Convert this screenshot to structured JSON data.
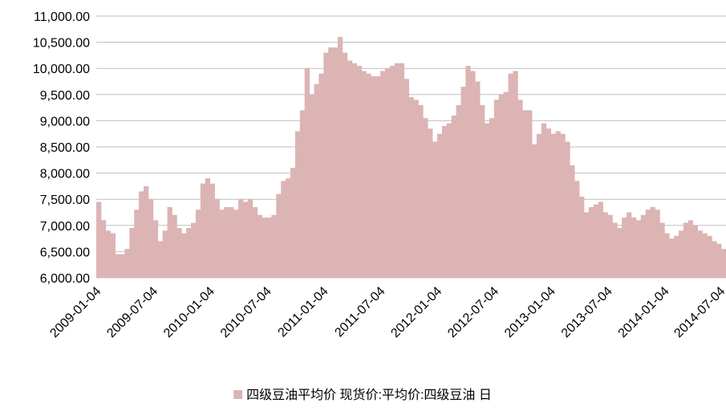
{
  "chart_data": {
    "type": "bar",
    "categories": [
      "2009-01-04",
      null,
      null,
      null,
      null,
      null,
      null,
      null,
      null,
      null,
      null,
      null,
      "2009-07-04",
      null,
      null,
      null,
      null,
      null,
      null,
      null,
      null,
      null,
      null,
      null,
      "2010-01-04",
      null,
      null,
      null,
      null,
      null,
      null,
      null,
      null,
      null,
      null,
      null,
      "2010-07-04",
      null,
      null,
      null,
      null,
      null,
      null,
      null,
      null,
      null,
      null,
      null,
      "2011-01-04",
      null,
      null,
      null,
      null,
      null,
      null,
      null,
      null,
      null,
      null,
      null,
      "2011-07-04",
      null,
      null,
      null,
      null,
      null,
      null,
      null,
      null,
      null,
      null,
      null,
      "2012-01-04",
      null,
      null,
      null,
      null,
      null,
      null,
      null,
      null,
      null,
      null,
      null,
      "2012-07-04",
      null,
      null,
      null,
      null,
      null,
      null,
      null,
      null,
      null,
      null,
      null,
      "2013-01-04",
      null,
      null,
      null,
      null,
      null,
      null,
      null,
      null,
      null,
      null,
      null,
      "2013-07-04",
      null,
      null,
      null,
      null,
      null,
      null,
      null,
      null,
      null,
      null,
      null,
      "2014-01-04",
      null,
      null,
      null,
      null,
      null,
      null,
      null,
      null,
      null,
      null,
      null,
      "2014-07-04"
    ],
    "series": [
      {
        "name": "四级豆油平均价 现货价:平均价:四级豆油 日",
        "color": "#dcb4b4",
        "values": [
          7450,
          7100,
          6900,
          6850,
          6450,
          6450,
          6550,
          6950,
          7300,
          7650,
          7750,
          7500,
          7100,
          6700,
          6900,
          7350,
          7200,
          6950,
          6850,
          6950,
          7050,
          7300,
          7800,
          7900,
          7800,
          7500,
          7300,
          7350,
          7350,
          7300,
          7500,
          7450,
          7500,
          7350,
          7200,
          7150,
          7150,
          7200,
          7600,
          7850,
          7900,
          8100,
          8800,
          9200,
          10000,
          9500,
          9700,
          9900,
          10300,
          10400,
          10400,
          10600,
          10300,
          10150,
          10100,
          10050,
          9950,
          9900,
          9850,
          9850,
          9950,
          10000,
          10050,
          10100,
          10100,
          9800,
          9450,
          9400,
          9300,
          9050,
          8850,
          8600,
          8750,
          8900,
          8950,
          9100,
          9300,
          9650,
          10050,
          9950,
          9750,
          9300,
          8950,
          9050,
          9400,
          9500,
          9550,
          9900,
          9950,
          9400,
          9200,
          9200,
          8550,
          8750,
          8950,
          8850,
          8750,
          8800,
          8750,
          8600,
          8150,
          7850,
          7550,
          7250,
          7350,
          7400,
          7450,
          7250,
          7200,
          7050,
          6950,
          7150,
          7250,
          7150,
          7100,
          7200,
          7300,
          7350,
          7300,
          7050,
          6850,
          6750,
          6800,
          6900,
          7050,
          7100,
          7000,
          6900,
          6850,
          6800,
          6700,
          6650,
          6550
        ]
      }
    ],
    "ylim": [
      6000,
      11000
    ],
    "yticks": [
      {
        "value": 6000,
        "label": "6,000.00"
      },
      {
        "value": 6500,
        "label": "6,500.00"
      },
      {
        "value": 7000,
        "label": "7,000.00"
      },
      {
        "value": 7500,
        "label": "7,500.00"
      },
      {
        "value": 8000,
        "label": "8,000.00"
      },
      {
        "value": 8500,
        "label": "8,500.00"
      },
      {
        "value": 9000,
        "label": "9,000.00"
      },
      {
        "value": 9500,
        "label": "9,500.00"
      },
      {
        "value": 10000,
        "label": "10,000.00"
      },
      {
        "value": 10500,
        "label": "10,500.00"
      },
      {
        "value": 11000,
        "label": "11,000.00"
      }
    ],
    "grid": true,
    "legend": "bottom"
  }
}
